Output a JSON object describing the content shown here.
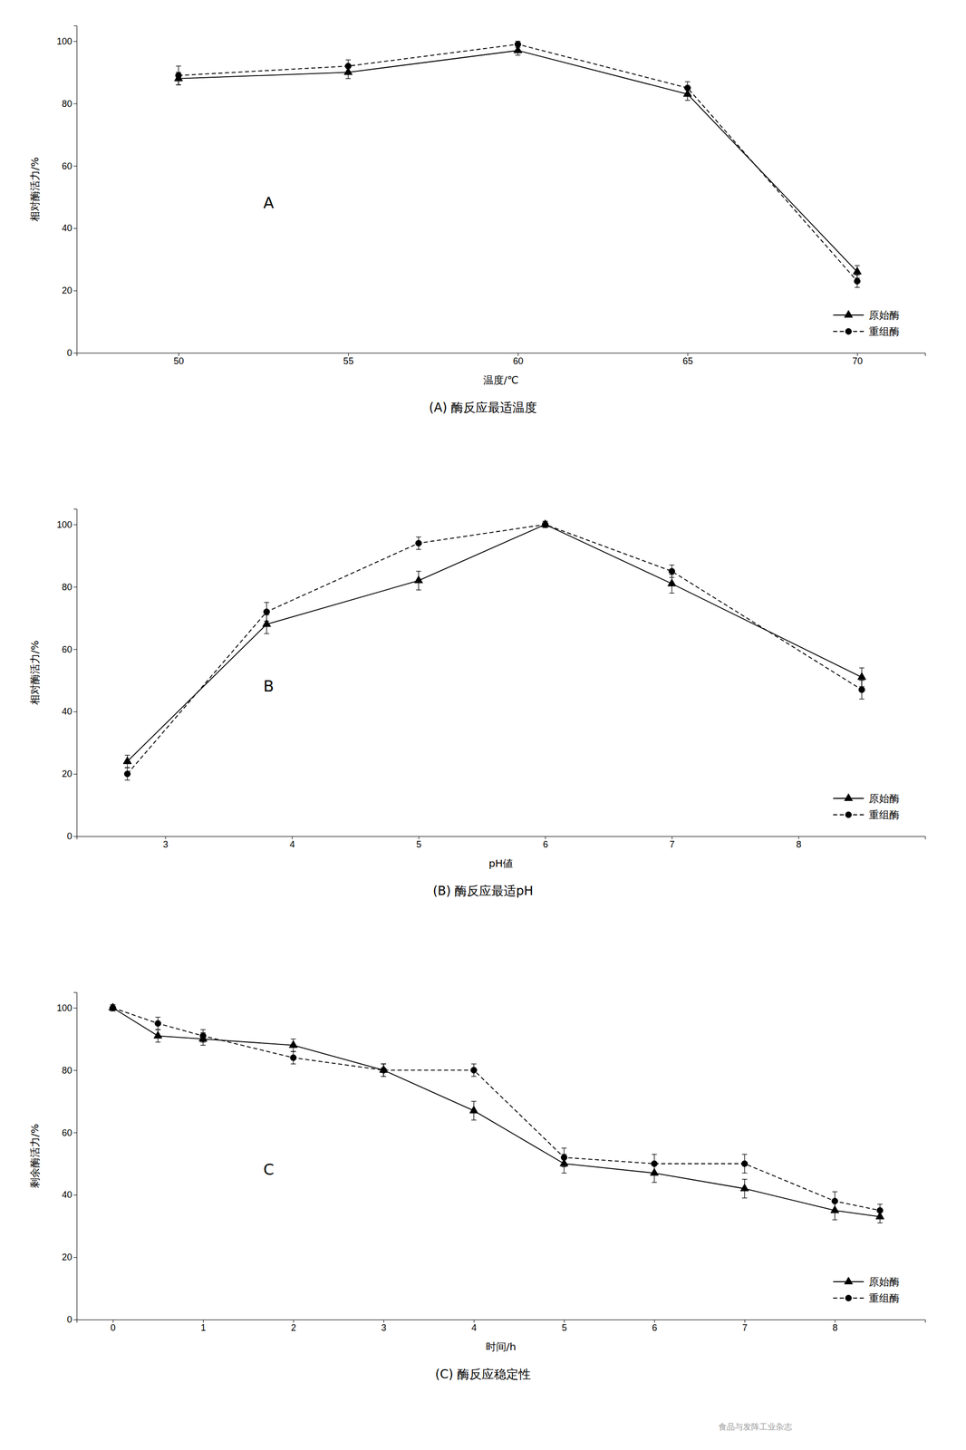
{
  "chart_data": [
    {
      "type": "line",
      "title": "(A) 酶反应最适温度",
      "xlabel": "温度/℃",
      "ylabel": "相对酶活力/%",
      "annotations": [
        {
          "text": "A"
        }
      ],
      "x": [
        50,
        55,
        60,
        65,
        70
      ],
      "series": [
        {
          "name": "原始酶",
          "color": "#000000",
          "marker": "triangle",
          "line_style": "solid",
          "values": [
            88,
            90,
            97,
            83,
            26
          ],
          "errors": [
            2,
            2,
            1.5,
            2,
            2
          ]
        },
        {
          "name": "重组酶",
          "color": "#000000",
          "marker": "circle",
          "line_style": "dashed",
          "values": [
            89,
            92,
            99,
            85,
            23
          ],
          "errors": [
            3,
            2,
            1,
            2,
            2
          ]
        }
      ],
      "xlim": [
        47,
        72
      ],
      "xticks": [
        50,
        55,
        60,
        65,
        70
      ],
      "ylim": [
        0,
        105
      ],
      "yticks": [
        0,
        20,
        40,
        60,
        80,
        100
      ],
      "grid": false,
      "legend": "lower right"
    },
    {
      "type": "line",
      "title": "(B) 酶反应最适pH",
      "xlabel": "pH値",
      "ylabel": "相对酶活力/%",
      "annotations": [
        {
          "text": "B"
        }
      ],
      "x": [
        2.7,
        3.8,
        5.0,
        6.0,
        7.0,
        8.5
      ],
      "series": [
        {
          "name": "原始酶",
          "color": "#000000",
          "marker": "triangle",
          "line_style": "solid",
          "values": [
            24,
            68,
            82,
            100,
            81,
            51
          ],
          "errors": [
            2,
            3,
            3,
            1,
            3,
            3
          ]
        },
        {
          "name": "重组酶",
          "color": "#000000",
          "marker": "circle",
          "line_style": "dashed",
          "values": [
            20,
            72,
            94,
            100,
            85,
            47
          ],
          "errors": [
            2,
            3,
            2,
            1,
            2,
            3
          ]
        }
      ],
      "xlim": [
        2.3,
        9.0
      ],
      "xticks": [
        3,
        4,
        5,
        6,
        7,
        8
      ],
      "ylim": [
        0,
        105
      ],
      "yticks": [
        0,
        20,
        40,
        60,
        80,
        100
      ],
      "grid": false,
      "legend": "lower right"
    },
    {
      "type": "line",
      "title": "(C) 酶反应稳定性",
      "xlabel": "时间/h",
      "ylabel": "剩余酶活力/%",
      "annotations": [
        {
          "text": "C"
        }
      ],
      "x": [
        0,
        0.5,
        1,
        2,
        3,
        4,
        5,
        6,
        7,
        8,
        8.5
      ],
      "series": [
        {
          "name": "原始酶",
          "color": "#000000",
          "marker": "triangle",
          "line_style": "solid",
          "values": [
            100,
            91,
            90,
            88,
            80,
            67,
            50,
            47,
            42,
            35,
            33
          ],
          "errors": [
            1,
            2,
            2,
            2,
            2,
            3,
            3,
            3,
            3,
            3,
            2
          ]
        },
        {
          "name": "重组酶",
          "color": "#000000",
          "marker": "circle",
          "line_style": "dashed",
          "values": [
            100,
            95,
            91,
            84,
            80,
            80,
            52,
            50,
            50,
            38,
            35
          ],
          "errors": [
            1,
            2,
            2,
            2,
            2,
            2,
            3,
            3,
            3,
            3,
            2
          ]
        }
      ],
      "xlim": [
        -0.4,
        9.0
      ],
      "xticks": [
        0,
        1,
        2,
        3,
        4,
        5,
        6,
        7,
        8
      ],
      "ylim": [
        0,
        105
      ],
      "yticks": [
        0,
        20,
        40,
        60,
        80,
        100
      ],
      "grid": false,
      "legend": "lower right"
    }
  ],
  "watermark": "食品与发阵工业杂志"
}
